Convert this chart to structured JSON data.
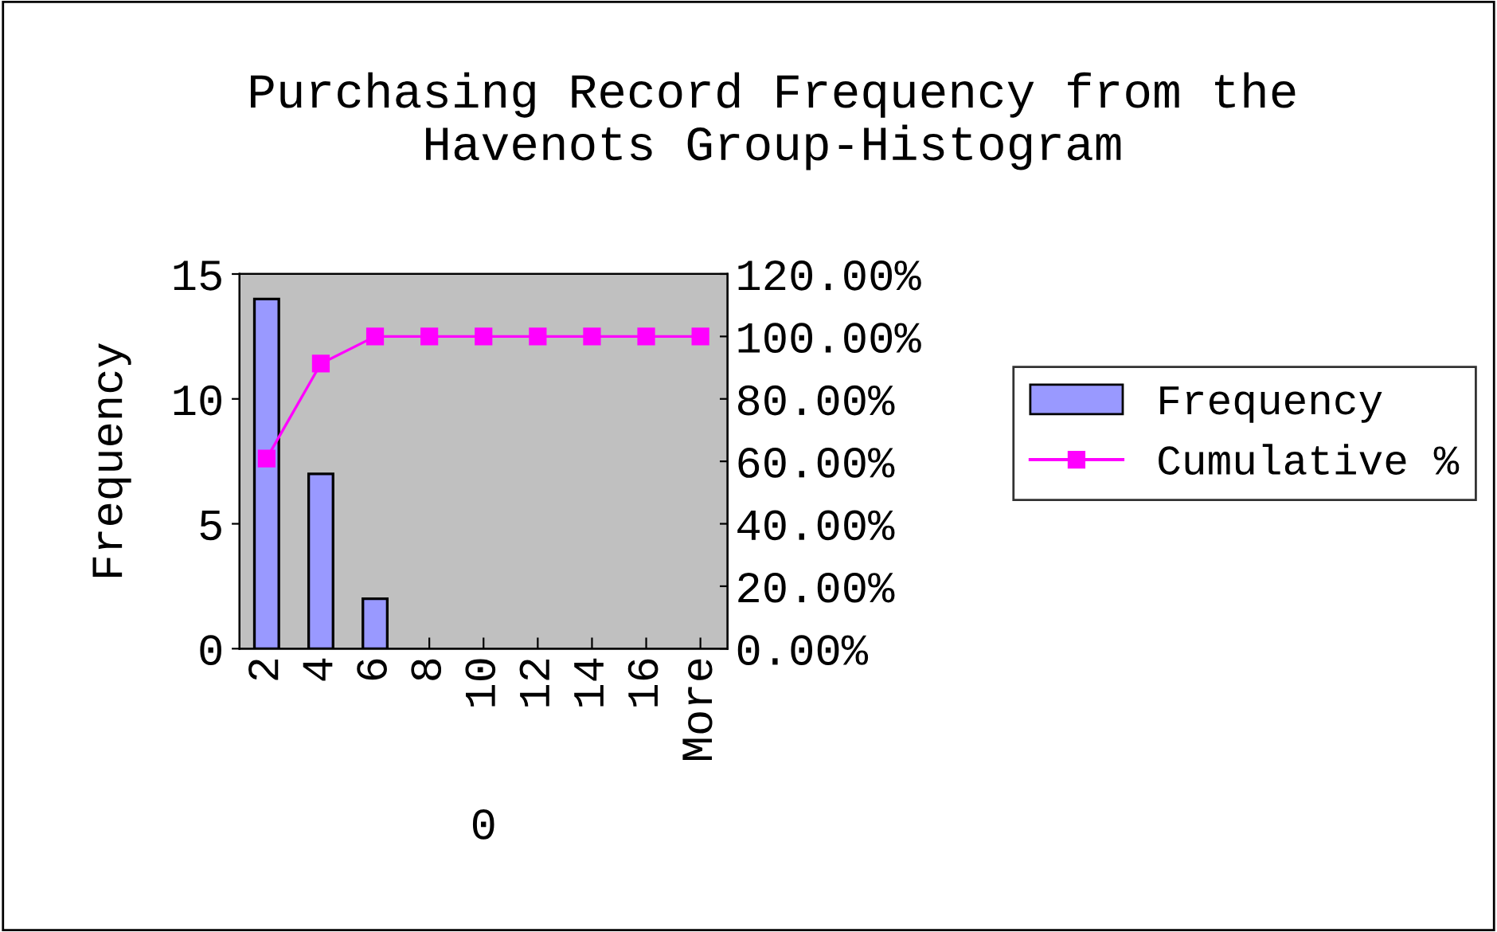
{
  "chart_data": {
    "type": "bar",
    "title": "Purchasing Record Frequency from the Havenots Group-Histogram",
    "xlabel": "0",
    "ylabel": "Frequency",
    "categories": [
      "2",
      "4",
      "6",
      "8",
      "10",
      "12",
      "14",
      "16",
      "More"
    ],
    "series": [
      {
        "name": "Frequency",
        "color": "#9999ff",
        "values": [
          14,
          7,
          2,
          0,
          0,
          0,
          0,
          0,
          0
        ]
      },
      {
        "name": "Cumulative %",
        "type": "line",
        "axis": "y2",
        "color": "#ff00ff",
        "marker": "square",
        "values": [
          60.9,
          91.3,
          100,
          100,
          100,
          100,
          100,
          100,
          100
        ]
      }
    ],
    "ylim": [
      0,
      15
    ],
    "yticks": [
      0,
      5,
      10,
      15
    ],
    "y2lim": [
      0,
      120
    ],
    "y2ticks": [
      {
        "value": 0,
        "label": "0.00%"
      },
      {
        "value": 20,
        "label": "20.00%"
      },
      {
        "value": 40,
        "label": "40.00%"
      },
      {
        "value": 60,
        "label": "60.00%"
      },
      {
        "value": 80,
        "label": "80.00%"
      },
      {
        "value": 100,
        "label": "100.00%"
      },
      {
        "value": 120,
        "label": "120.00%"
      }
    ],
    "legend": "right",
    "grid": false
  }
}
